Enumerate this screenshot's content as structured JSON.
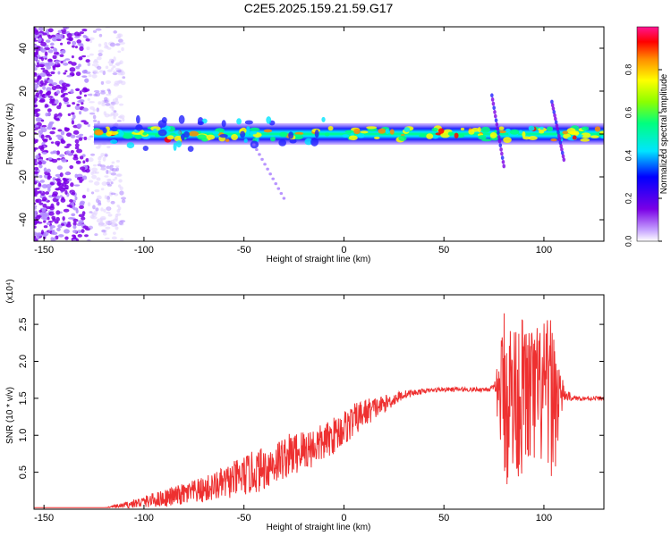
{
  "title": "C2E5.2025.159.21.59.G17",
  "chart_data": [
    {
      "type": "heatmap",
      "xlabel": "Height of straight line (km)",
      "ylabel": "Frequency (Hz)",
      "xlim": [
        -155,
        130
      ],
      "ylim": [
        -50,
        50
      ],
      "xticks": [
        -150,
        -100,
        -50,
        0,
        50,
        100
      ],
      "yticks": [
        -40,
        -20,
        0,
        20,
        40
      ],
      "colorbar": {
        "label": "Normalized spectral amplitude",
        "range": [
          0,
          1
        ],
        "ticks": [
          0.0,
          0.2,
          0.4,
          0.6,
          0.8
        ],
        "colors": [
          "#ffffff",
          "#c8a6ff",
          "#7a00e6",
          "#0000ff",
          "#00e5ff",
          "#00ff7f",
          "#8cff00",
          "#ffff00",
          "#ff8c00",
          "#ff0000",
          "#ff1493"
        ]
      },
      "regions": [
        {
          "name": "scattered noise",
          "x_range": [
            -155,
            -110
          ],
          "y_range": [
            -50,
            50
          ],
          "amplitude": 0.15
        },
        {
          "name": "signal band",
          "x_range": [
            -125,
            130
          ],
          "y_center": 0,
          "y_halfwidth": 5,
          "amplitude": 0.8
        },
        {
          "name": "descending streak",
          "x_range": [
            -45,
            -20
          ],
          "y_range": [
            -30,
            -5
          ],
          "amplitude": 0.3
        },
        {
          "name": "spike",
          "x_range": [
            74,
            80
          ],
          "y_range": [
            -15,
            18
          ],
          "amplitude": 0.45
        },
        {
          "name": "spike",
          "x_range": [
            104,
            110
          ],
          "y_range": [
            -12,
            15
          ],
          "amplitude": 0.45
        }
      ]
    },
    {
      "type": "line",
      "xlabel": "Height of straight line (km)",
      "ylabel": "SNR (10 * v/v)",
      "yscale_label": "(x10⁴)",
      "xlim": [
        -155,
        130
      ],
      "ylim": [
        0,
        2.9
      ],
      "xticks": [
        -150,
        -100,
        -50,
        0,
        50,
        100
      ],
      "yticks": [
        0.5,
        1.0,
        1.5,
        2.0,
        2.5
      ],
      "color": "#ee3030",
      "series": [
        {
          "x": [
            -155,
            -120,
            -110,
            -100,
            -90,
            -80,
            -70,
            -60,
            -50,
            -40,
            -30,
            -20,
            -10,
            0,
            10,
            20,
            30,
            40,
            50,
            60,
            70,
            75,
            78,
            80,
            85,
            90,
            95,
            100,
            105,
            110,
            115,
            120,
            130
          ],
          "y": [
            0.02,
            0.02,
            0.05,
            0.1,
            0.15,
            0.2,
            0.26,
            0.35,
            0.45,
            0.55,
            0.7,
            0.8,
            0.9,
            1.1,
            1.3,
            1.42,
            1.55,
            1.6,
            1.62,
            1.62,
            1.62,
            1.63,
            1.55,
            1.55,
            1.5,
            1.55,
            1.5,
            1.55,
            1.5,
            1.55,
            1.5,
            1.5,
            1.5
          ],
          "noise_amplitude": [
            0,
            0,
            0.04,
            0.08,
            0.12,
            0.15,
            0.18,
            0.22,
            0.28,
            0.3,
            0.3,
            0.3,
            0.25,
            0.25,
            0.2,
            0.12,
            0.06,
            0.03,
            0.03,
            0.03,
            0.03,
            0.05,
            0.6,
            1.3,
            1.1,
            1.1,
            1.0,
            1.0,
            1.1,
            0.1,
            0.03,
            0.03,
            0.03
          ]
        }
      ]
    }
  ]
}
